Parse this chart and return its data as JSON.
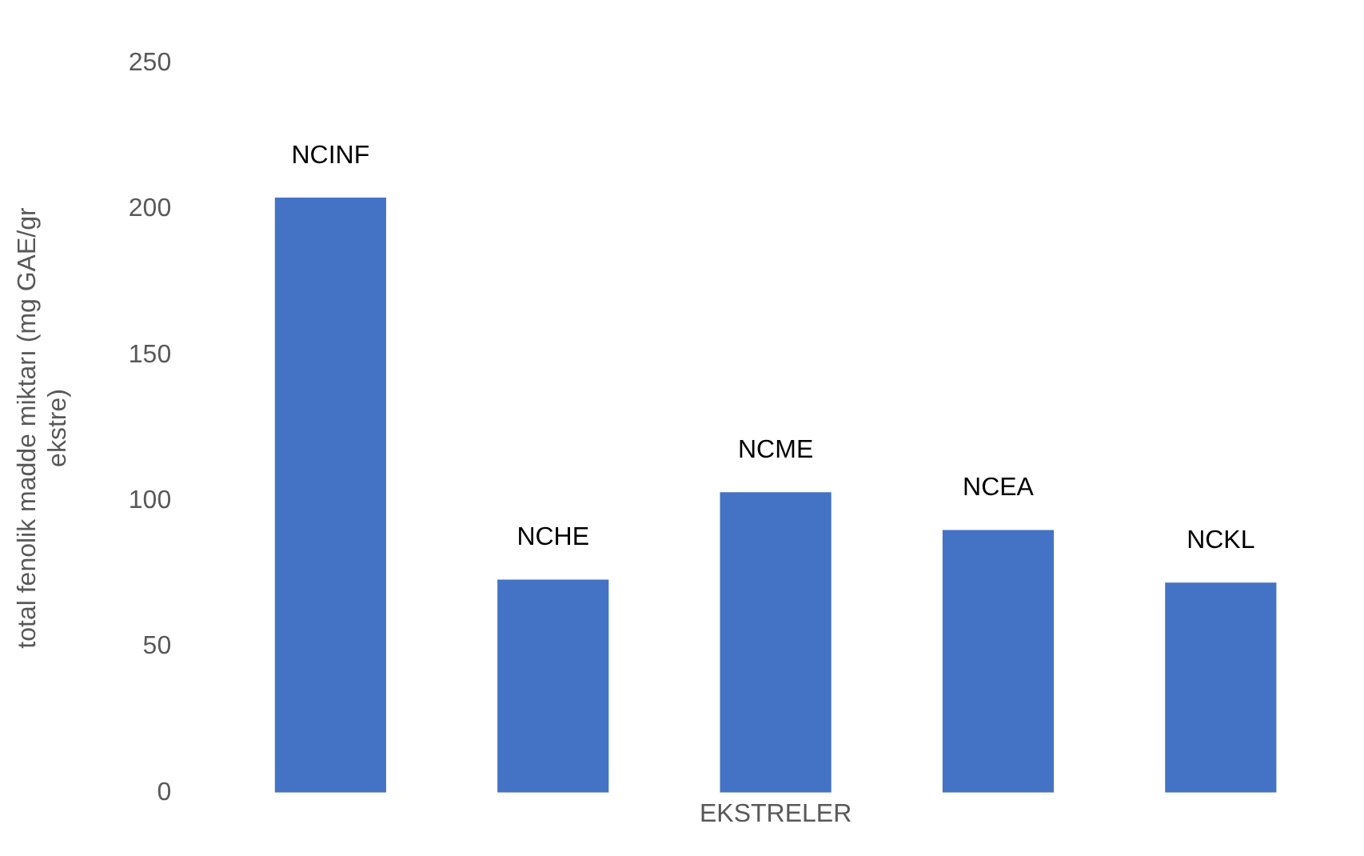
{
  "chart_data": {
    "type": "bar",
    "xlabel": "EKSTRELER",
    "ylabel": "total fenolik madde miktarı (mg GAE/gr ekstre)",
    "categories": [
      "NCINF",
      "NCHE",
      "NCME",
      "NCEA",
      "NCKL"
    ],
    "values": [
      204,
      73,
      103,
      90,
      72
    ],
    "color": "#4472c4",
    "ylim": [
      0,
      250
    ],
    "yticks": [
      0,
      50,
      100,
      150,
      200,
      250
    ],
    "grid": false,
    "legend": false
  }
}
